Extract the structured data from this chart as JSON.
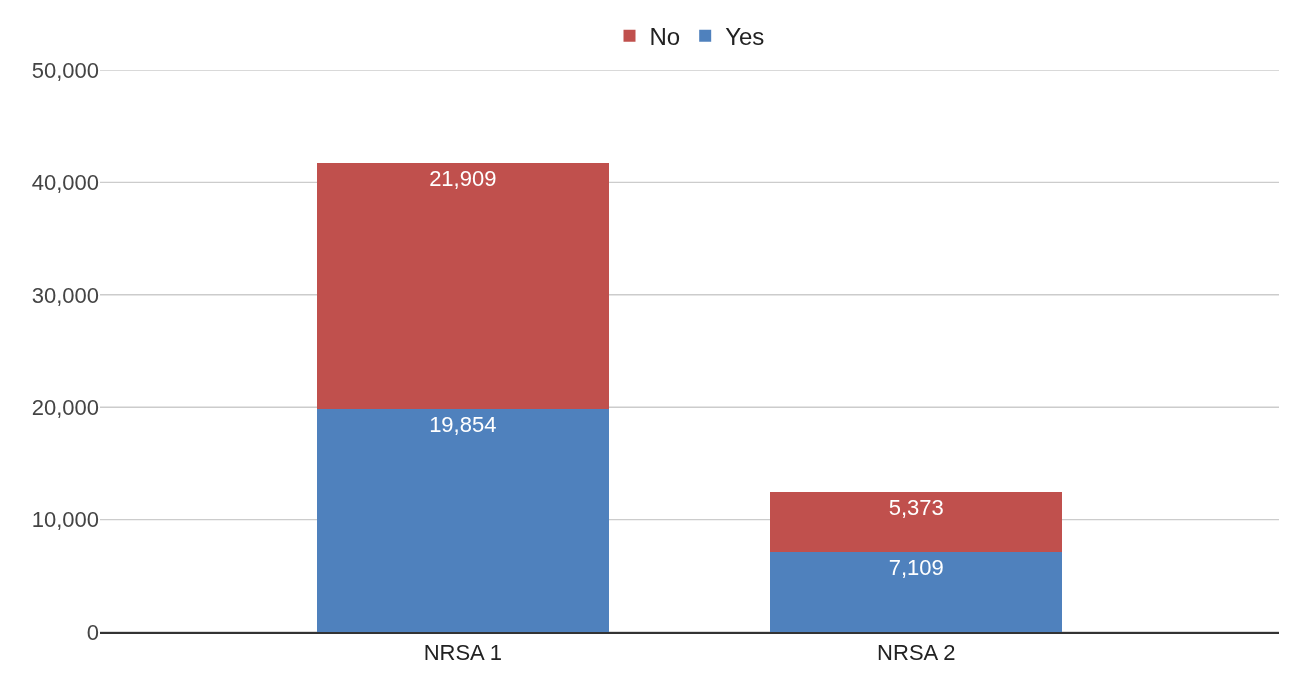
{
  "chart_data": {
    "type": "bar",
    "stacked": true,
    "categories": [
      "NRSA 1",
      "NRSA 2"
    ],
    "series": [
      {
        "name": "Yes",
        "color": "#4f81bd",
        "values": [
          19854,
          7109
        ],
        "value_labels": [
          "19,854",
          "7,109"
        ]
      },
      {
        "name": "No",
        "color": "#c0504d",
        "values": [
          21909,
          5373
        ],
        "value_labels": [
          "21,909",
          "5,373"
        ]
      }
    ],
    "ylim": [
      0,
      50000
    ],
    "yticks": [
      {
        "value": 0,
        "label": "0"
      },
      {
        "value": 10000,
        "label": "10,000"
      },
      {
        "value": 20000,
        "label": "20,000"
      },
      {
        "value": 30000,
        "label": "30,000"
      },
      {
        "value": 40000,
        "label": "40,000"
      },
      {
        "value": 50000,
        "label": "50,000"
      }
    ],
    "grid": "y",
    "legend": "top"
  }
}
